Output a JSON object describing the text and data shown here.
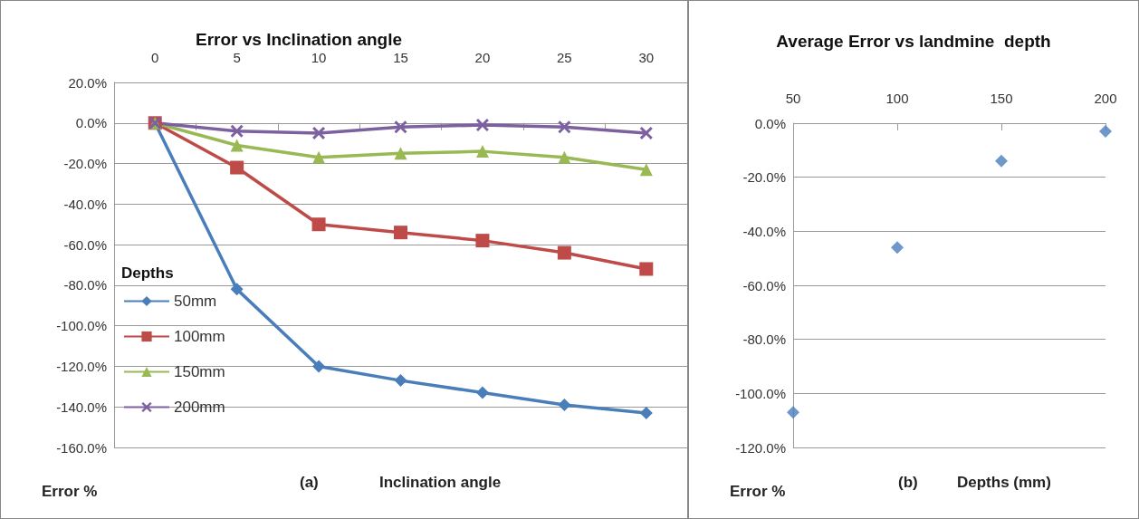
{
  "chart_data": [
    {
      "type": "line",
      "title": "Error vs Inclination angle",
      "xlabel": "Inclination angle",
      "ylabel": "Error %",
      "annotations": [
        "(a)"
      ],
      "legend_title": "Depths",
      "legend": "left",
      "categories": [
        "0",
        "5",
        "10",
        "15",
        "20",
        "25",
        "30"
      ],
      "series": [
        {
          "name": "50mm",
          "color": "#4a7ebb",
          "marker": "diamond",
          "values": [
            0,
            -82,
            -120,
            -127,
            -133,
            -139,
            -143
          ]
        },
        {
          "name": "100mm",
          "color": "#be4b48",
          "marker": "square",
          "values": [
            0,
            -22,
            -50,
            -54,
            -58,
            -64,
            -72
          ]
        },
        {
          "name": "150mm",
          "color": "#98b954",
          "marker": "triangle",
          "values": [
            0,
            -11,
            -17,
            -15,
            -14,
            -17,
            -23
          ]
        },
        {
          "name": "200mm",
          "color": "#7d60a0",
          "marker": "cross",
          "values": [
            0,
            -4,
            -5,
            -2,
            -1,
            -2,
            -5
          ]
        }
      ],
      "ylim": [
        -160,
        20
      ],
      "yticks": [
        {
          "value": -160,
          "label": "-160.0%"
        },
        {
          "value": -140,
          "label": "-140.0%"
        },
        {
          "value": -120,
          "label": "-120.0%"
        },
        {
          "value": -100,
          "label": "-100.0%"
        },
        {
          "value": -80,
          "label": "-80.0%"
        },
        {
          "value": -60,
          "label": "-60.0%"
        },
        {
          "value": -40,
          "label": "-40.0%"
        },
        {
          "value": -20,
          "label": "-20.0%"
        },
        {
          "value": 0,
          "label": "0.0%"
        },
        {
          "value": 20,
          "label": "20.0%"
        }
      ],
      "grid": "y"
    },
    {
      "type": "scatter",
      "title": "Average Error vs landmine  depth",
      "xlabel": "Depths (mm)",
      "ylabel": "Error %",
      "annotations": [
        "(b)"
      ],
      "marker": "diamond",
      "x": [
        50,
        100,
        150,
        200
      ],
      "series": [
        {
          "color": "#4a7ebb",
          "values": [
            -107,
            -46,
            -14,
            -3
          ]
        }
      ],
      "xlim": [
        50,
        200
      ],
      "xticks": [
        50,
        100,
        150,
        200
      ],
      "ylim": [
        -120,
        0
      ],
      "yticks": [
        {
          "value": -120,
          "label": "-120.0%"
        },
        {
          "value": -100,
          "label": "-100.0%"
        },
        {
          "value": -80,
          "label": "-80.0%"
        },
        {
          "value": -60,
          "label": "-60.0%"
        },
        {
          "value": -40,
          "label": "-40.0%"
        },
        {
          "value": -20,
          "label": "-20.0%"
        },
        {
          "value": 0,
          "label": "0.0%"
        }
      ],
      "grid": "y"
    }
  ]
}
